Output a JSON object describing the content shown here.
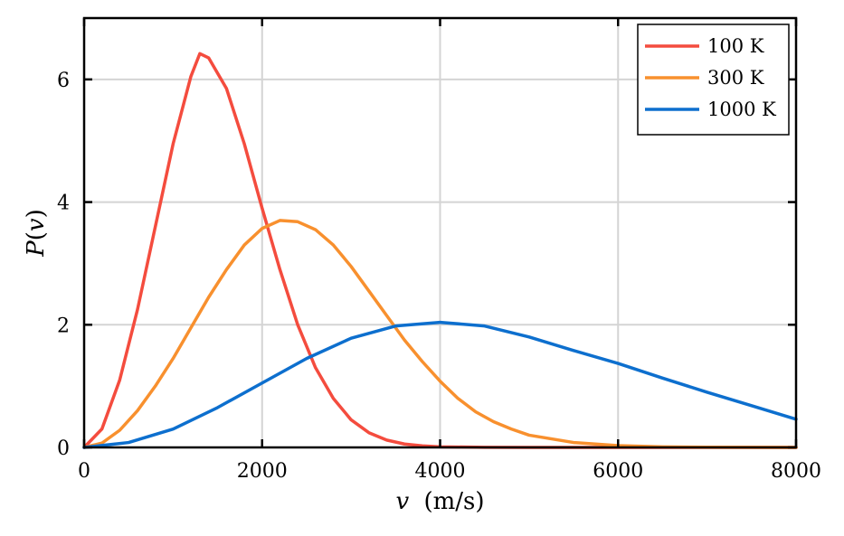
{
  "chart_data": {
    "type": "line",
    "xlabel_var": "v",
    "xlabel_unit": "(m/s)",
    "ylabel_fn": "P",
    "ylabel_open": "(",
    "ylabel_var": "v",
    "ylabel_close": ")",
    "xlim": [
      0,
      8000
    ],
    "ylim": [
      0,
      7
    ],
    "xticks": [
      0,
      2000,
      4000,
      6000,
      8000
    ],
    "yticks": [
      0,
      2,
      4,
      6
    ],
    "xtick_labels": [
      "0",
      "2000",
      "4000",
      "6000",
      "8000"
    ],
    "ytick_labels": [
      "0",
      "2",
      "4",
      "6"
    ],
    "grid": true,
    "legend_position": "top-right",
    "series": [
      {
        "name": "100 K",
        "color": "#f44c3e",
        "x": [
          0,
          200,
          400,
          600,
          800,
          1000,
          1200,
          1300,
          1400,
          1600,
          1800,
          2000,
          2200,
          2400,
          2600,
          2800,
          3000,
          3200,
          3400,
          3600,
          3800,
          4000,
          4500,
          5000,
          6000,
          7000,
          8000
        ],
        "y": [
          0,
          0.3,
          1.1,
          2.25,
          3.6,
          4.95,
          6.05,
          6.42,
          6.35,
          5.85,
          4.95,
          3.9,
          2.9,
          2.0,
          1.3,
          0.8,
          0.45,
          0.24,
          0.12,
          0.055,
          0.025,
          0.01,
          0.002,
          0,
          0,
          0,
          0
        ]
      },
      {
        "name": "300 K",
        "color": "#f8902e",
        "x": [
          0,
          200,
          400,
          600,
          800,
          1000,
          1200,
          1400,
          1600,
          1800,
          2000,
          2200,
          2400,
          2600,
          2800,
          3000,
          3200,
          3400,
          3600,
          3800,
          4000,
          4200,
          4400,
          4600,
          4800,
          5000,
          5500,
          6000,
          6500,
          7000,
          8000
        ],
        "y": [
          0,
          0.07,
          0.28,
          0.6,
          1.0,
          1.45,
          1.95,
          2.45,
          2.9,
          3.3,
          3.57,
          3.7,
          3.68,
          3.55,
          3.3,
          2.95,
          2.55,
          2.15,
          1.75,
          1.4,
          1.08,
          0.8,
          0.58,
          0.42,
          0.3,
          0.2,
          0.08,
          0.03,
          0.01,
          0.003,
          0
        ]
      },
      {
        "name": "1000 K",
        "color": "#0d6fce",
        "x": [
          0,
          500,
          1000,
          1500,
          2000,
          2500,
          3000,
          3500,
          4000,
          4500,
          5000,
          5500,
          6000,
          6500,
          7000,
          7500,
          8000
        ],
        "y": [
          0,
          0.08,
          0.3,
          0.65,
          1.05,
          1.45,
          1.78,
          1.98,
          2.04,
          1.98,
          1.8,
          1.58,
          1.37,
          1.13,
          0.9,
          0.68,
          0.46
        ]
      }
    ]
  }
}
